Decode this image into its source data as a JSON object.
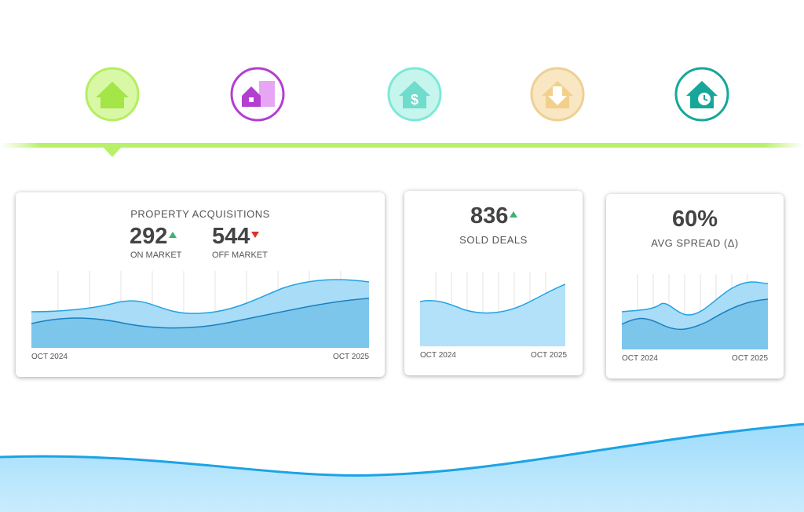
{
  "cards": [
    {
      "title": "PROPERTY ACQUISITIONS",
      "metrics": [
        {
          "value": "292",
          "label": "ON MARKET",
          "trend": "up"
        },
        {
          "value": "544",
          "label": "OFF MARKET",
          "trend": "down"
        }
      ],
      "start": "OCT 2024",
      "end": "OCT 2025"
    },
    {
      "metrics": [
        {
          "value": "836",
          "label": "SOLD DEALS",
          "trend": "up"
        }
      ],
      "start": "OCT 2024",
      "end": "OCT 2025"
    },
    {
      "metrics": [
        {
          "value": "60%",
          "label": "AVG SPREAD (Δ)"
        }
      ],
      "start": "OCT 2024",
      "end": "OCT 2025"
    }
  ]
}
